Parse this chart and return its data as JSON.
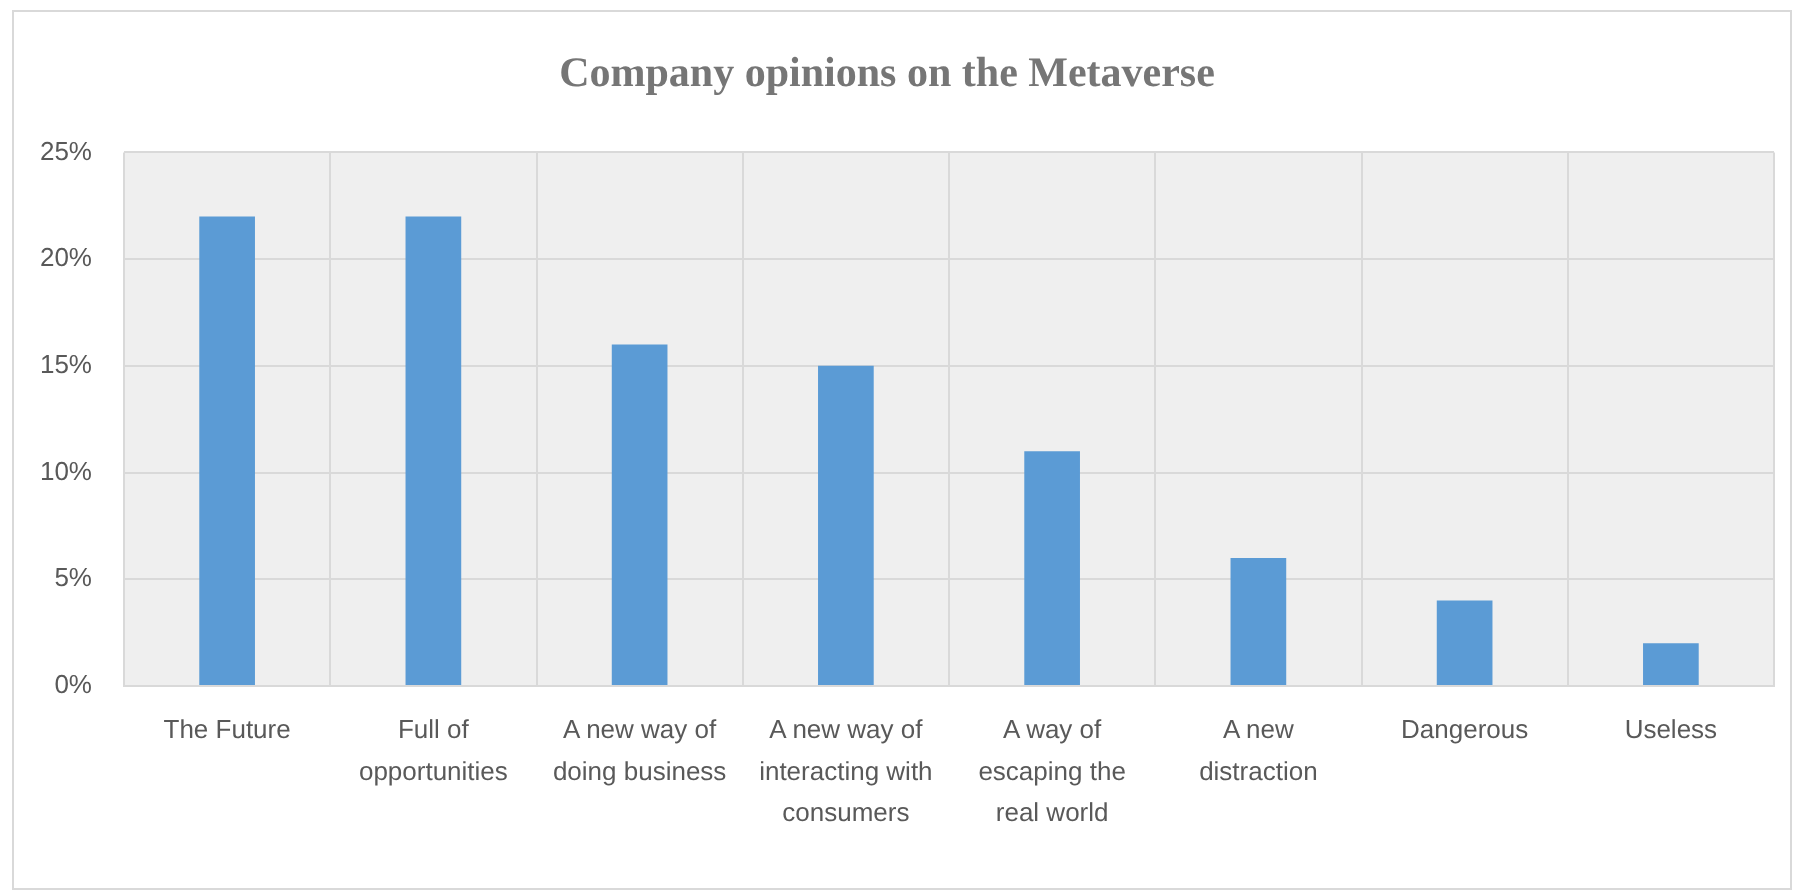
{
  "chart_data": {
    "type": "bar",
    "title": "Company opinions on the Metaverse",
    "categories": [
      "The Future",
      "Full of opportunities",
      "A new way of doing business",
      "A new way of interacting with consumers",
      "A way of escaping the real world",
      "A new distraction",
      "Dangerous",
      "Useless"
    ],
    "values": [
      22,
      22,
      16,
      15,
      11,
      6,
      4,
      2
    ],
    "color": "#5b9bd5",
    "ylim": [
      0,
      25
    ],
    "yticks": [
      {
        "value": 0,
        "label": "0%"
      },
      {
        "value": 5,
        "label": "5%"
      },
      {
        "value": 10,
        "label": "10%"
      },
      {
        "value": 15,
        "label": "15%"
      },
      {
        "value": 20,
        "label": "20%"
      },
      {
        "value": 25,
        "label": "25%"
      }
    ],
    "grid": true
  }
}
